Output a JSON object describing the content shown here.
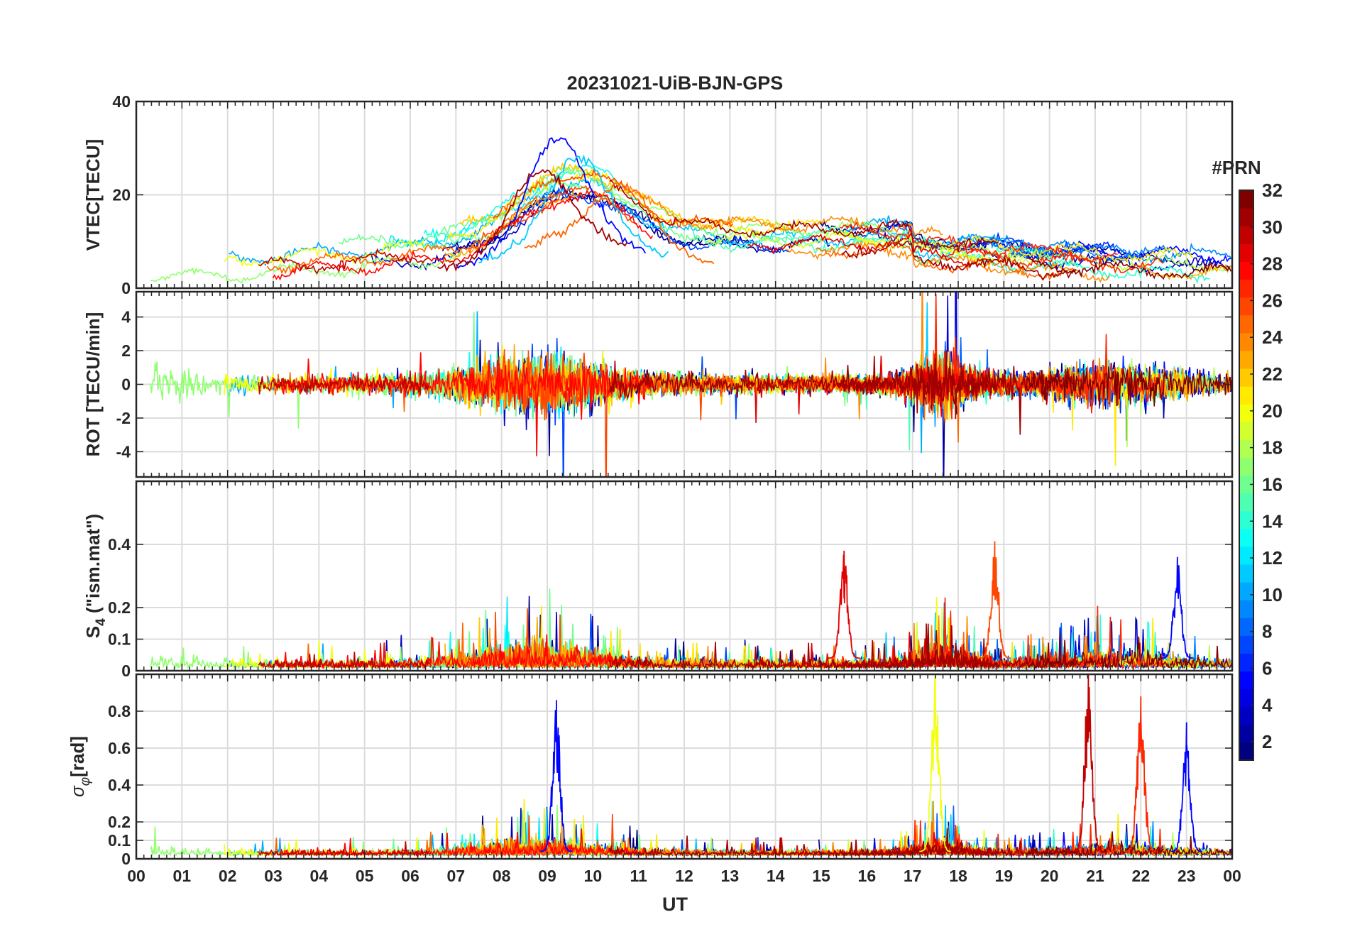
{
  "title": "20231021-UiB-BJN-GPS",
  "xlabel": "UT",
  "x_tick_labels": [
    "00",
    "01",
    "02",
    "03",
    "04",
    "05",
    "06",
    "07",
    "08",
    "09",
    "10",
    "11",
    "12",
    "13",
    "14",
    "15",
    "16",
    "17",
    "18",
    "19",
    "20",
    "21",
    "22",
    "23",
    "00"
  ],
  "colorbar": {
    "label": "#PRN",
    "ticks": [
      2,
      4,
      6,
      8,
      10,
      12,
      14,
      16,
      18,
      20,
      22,
      24,
      26,
      28,
      30,
      32
    ],
    "range": [
      1,
      32
    ],
    "colormap": "jet"
  },
  "chart_data": [
    {
      "type": "line",
      "ylabel": "VTEC[TECU]",
      "ylim": [
        0,
        40
      ],
      "yticks": [
        0,
        20,
        40
      ],
      "xlim": [
        0,
        24
      ],
      "x_unit": "hours UT",
      "grid": true,
      "series_description_color_by": "PRN",
      "key_features": [
        {
          "prn": 5,
          "peak_ut": 9.2,
          "peak_value": 32
        },
        {
          "prn": 11,
          "peak_ut": 9.7,
          "peak_value": 28
        },
        {
          "prn": 25,
          "peak_ut": 10.7,
          "peak_value": 22
        },
        {
          "prn": 31,
          "peak_ut": 8.8,
          "peak_value": 25
        }
      ]
    },
    {
      "type": "line",
      "ylabel": "ROT [TECU/min]",
      "ylim": [
        -5.5,
        5.5
      ],
      "yticks": [
        -4,
        -2,
        0,
        2,
        4
      ],
      "xlim": [
        0,
        24
      ],
      "grid": true
    },
    {
      "type": "line",
      "ylabel": "S4 (\"ism.mat\")",
      "ylabel_main": "S",
      "ylabel_sub": "4",
      "ylabel_rest": "(\"ism.mat\")",
      "ylim": [
        0,
        0.6
      ],
      "yticks": [
        0,
        0.1,
        0.2,
        0.4
      ],
      "ytick_labels": [
        "0",
        "0.1",
        "0.2",
        "0.4"
      ],
      "xlim": [
        0,
        24
      ],
      "grid": true,
      "key_features": [
        {
          "prn": 26,
          "peak_ut": 18.8,
          "peak_value": 0.41
        },
        {
          "prn": 29,
          "peak_ut": 15.5,
          "peak_value": 0.38
        },
        {
          "prn": 5,
          "peak_ut": 22.8,
          "peak_value": 0.36
        }
      ]
    },
    {
      "type": "line",
      "ylabel": "σφ[rad]",
      "ylabel_main": "σ",
      "ylabel_sub": "φ",
      "ylabel_rest": "[rad]",
      "ylim": [
        0,
        1
      ],
      "yticks": [
        0,
        0.1,
        0.2,
        0.4,
        0.6,
        0.8
      ],
      "ytick_labels": [
        "0",
        "0.1",
        "0.2",
        "0.4",
        "0.6",
        "0.8"
      ],
      "xlim": [
        0,
        24
      ],
      "grid": true,
      "key_features": [
        {
          "prn": 5,
          "peak_ut": 9.2,
          "peak_value": 0.86
        },
        {
          "prn": 20,
          "peak_ut": 17.5,
          "peak_value": 1.0
        },
        {
          "prn": 30,
          "peak_ut": 20.85,
          "peak_value": 1.0
        },
        {
          "prn": 27,
          "peak_ut": 22.0,
          "peak_value": 0.88
        },
        {
          "prn": 5,
          "peak_ut": 23.0,
          "peak_value": 0.74
        }
      ]
    }
  ]
}
